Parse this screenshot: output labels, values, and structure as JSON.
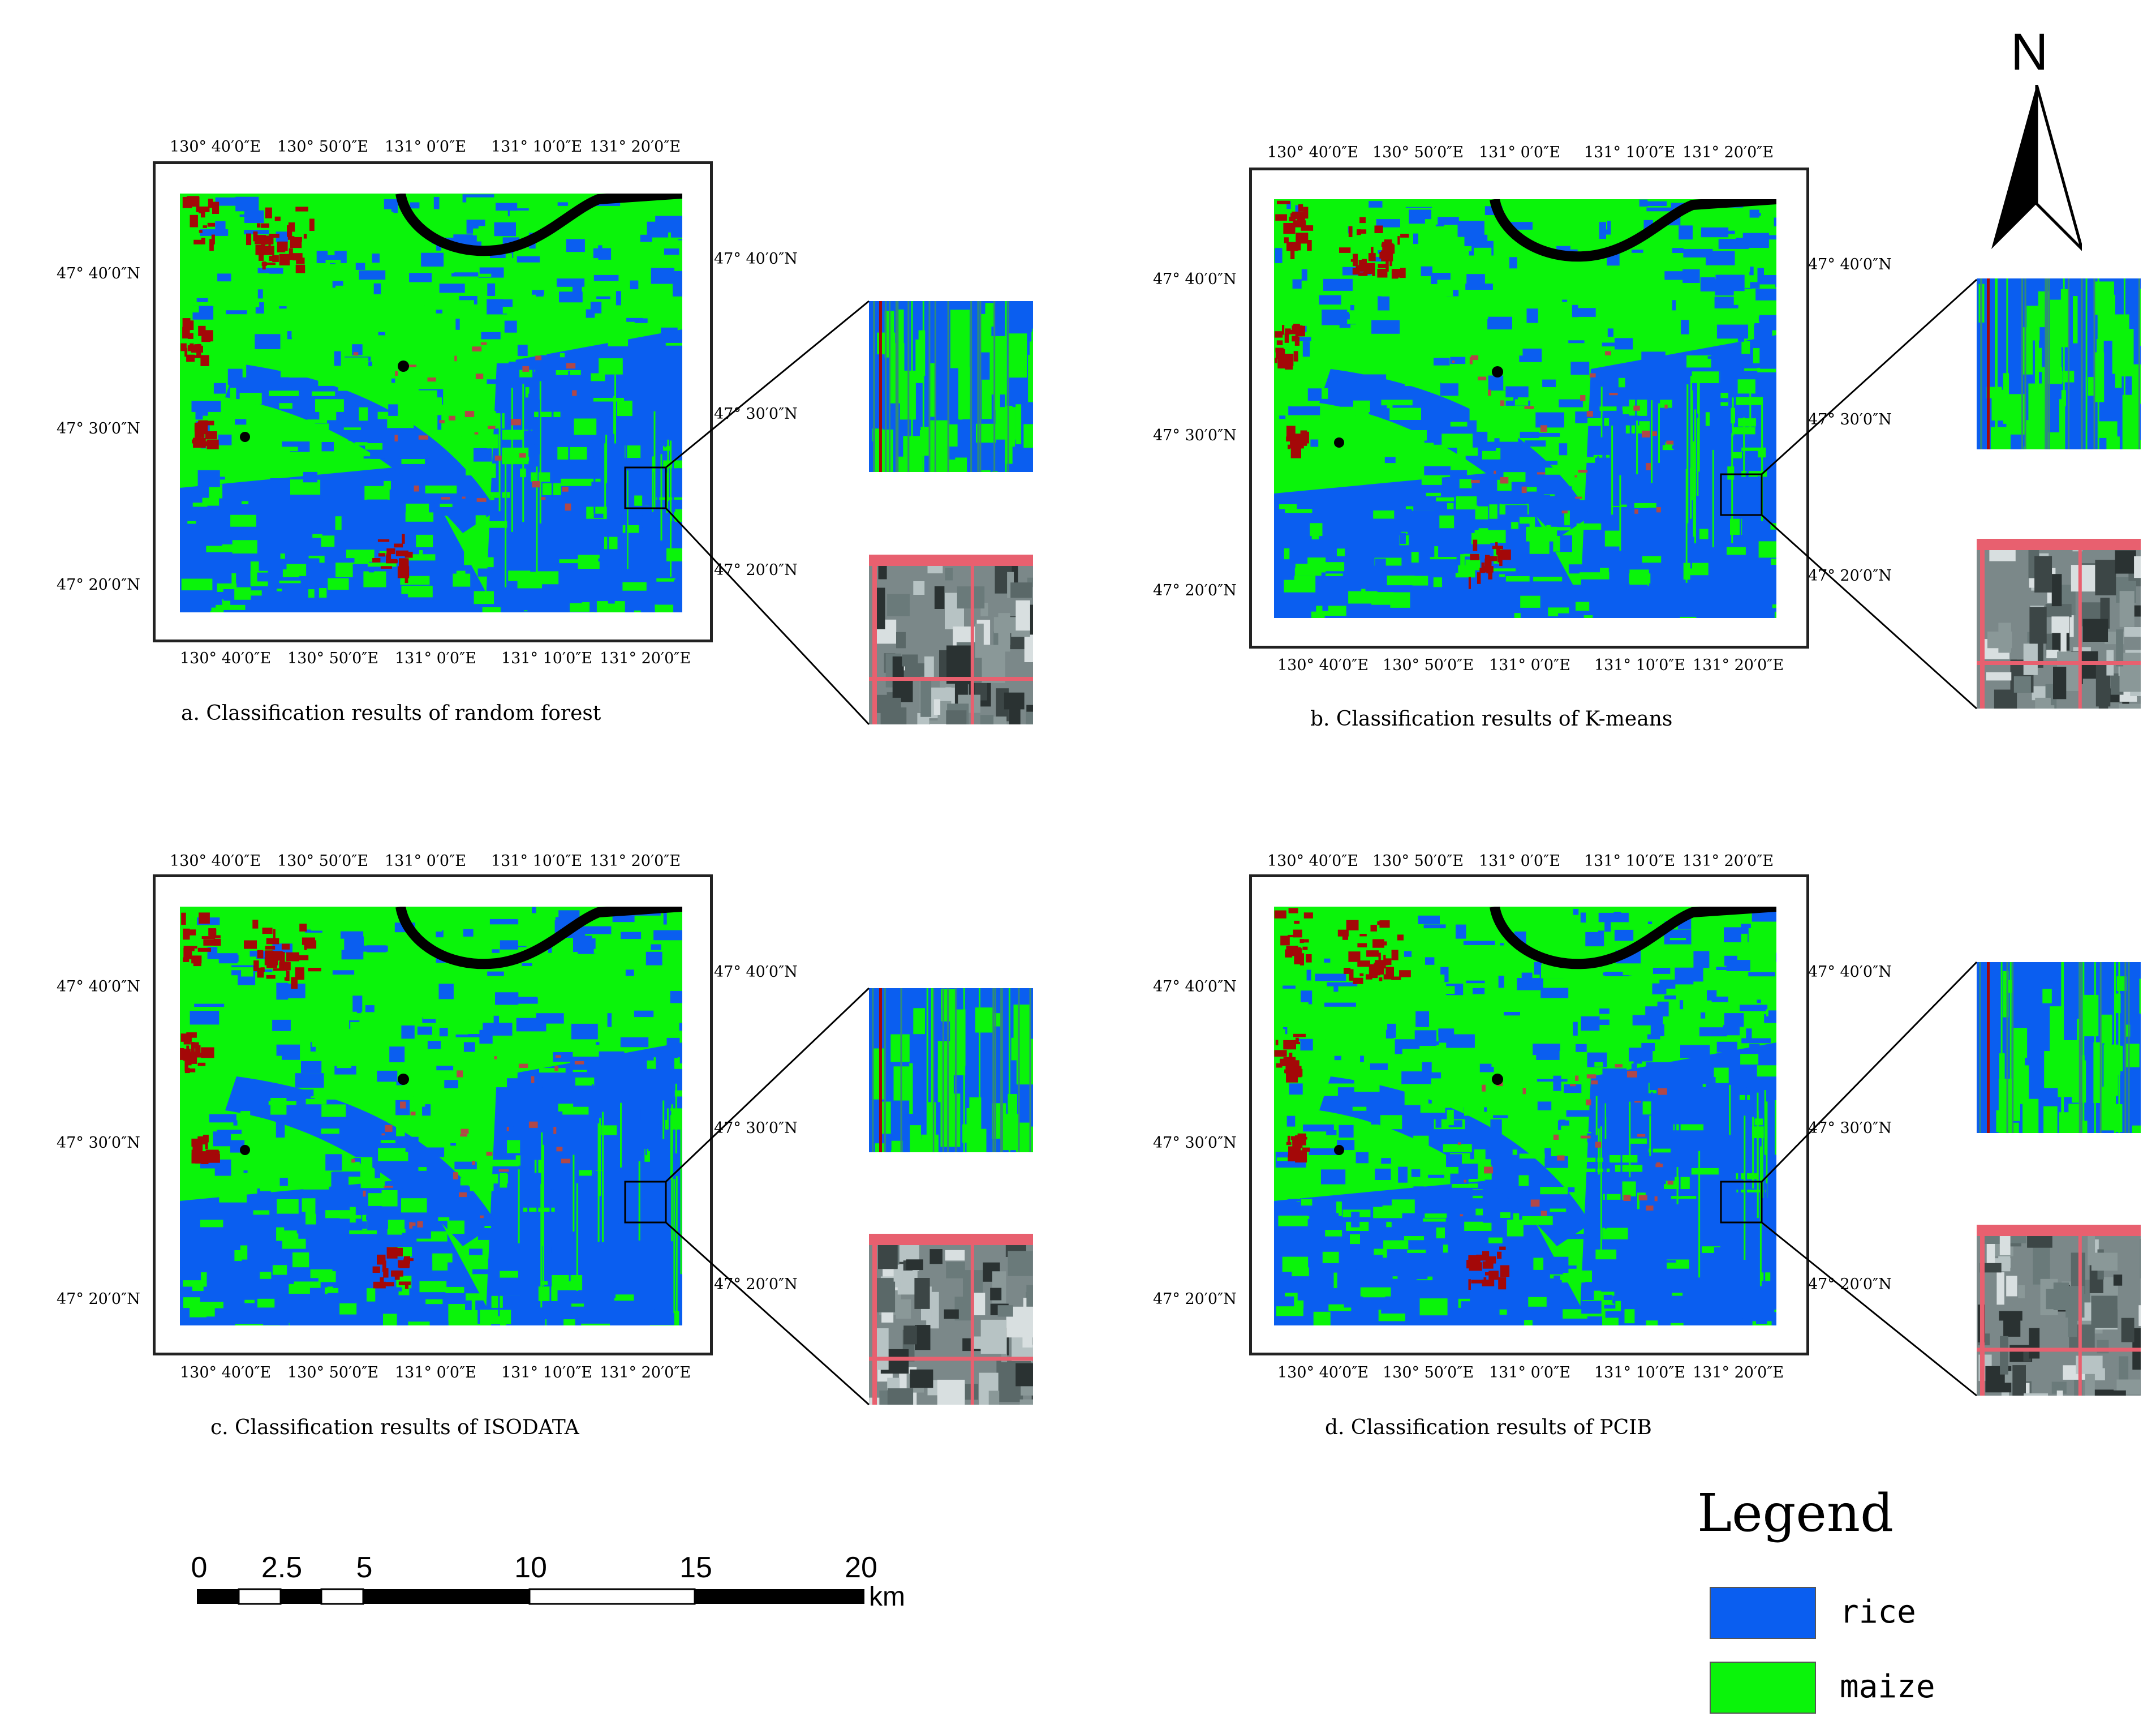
{
  "colors": {
    "rice": "#0a5ef0",
    "maize": "#0af40a",
    "other": "#a40808",
    "river": "#000000"
  },
  "panels": [
    {
      "caption": "a.  Classification results of random forest",
      "lon_ticks_top": [
        "130°  40′0″E",
        "130°  50′0″E",
        "131°  0′0″E",
        "131°  10′0″E",
        "131°  20′0″E"
      ],
      "lon_ticks_bottom": [
        "130°  40′0″E",
        "130°  50′0″E",
        "131°  0′0″E",
        "131°  10′0″E",
        "131°  20′0″E"
      ],
      "lat_ticks_left": [
        "47°  40′0″N",
        "47°  30′0″N",
        "47°  20′0″N"
      ],
      "lat_ticks_right": [
        "47°  40′0″N",
        "47°  30′0″N",
        "47°  20′0″N"
      ]
    },
    {
      "caption": "b.  Classification results of K-means",
      "lon_ticks_top": [
        "130°  40′0″E",
        "130°  50′0″E",
        "131°  0′0″E",
        "131°  10′0″E",
        "131°  20′0″E"
      ],
      "lon_ticks_bottom": [
        "130°  40′0″E",
        "130°  50′0″E",
        "131°  0′0″E",
        "131°  10′0″E",
        "131°  20′0″E"
      ],
      "lat_ticks_left": [
        "47°  40′0″N",
        "47°  30′0″N",
        "47°  20′0″N"
      ],
      "lat_ticks_right": [
        "47°  40′0″N",
        "47°  30′0″N",
        "47°  20′0″N"
      ]
    },
    {
      "caption": "c.  Classification results of ISODATA",
      "lon_ticks_top": [
        "130°  40′0″E",
        "130°  50′0″E",
        "131°  0′0″E",
        "131°  10′0″E",
        "131°  20′0″E"
      ],
      "lon_ticks_bottom": [
        "130°  40′0″E",
        "130°  50′0″E",
        "131°  0′0″E",
        "131°  10′0″E",
        "131°  20′0″E"
      ],
      "lat_ticks_left": [
        "47°  40′0″N",
        "47°  30′0″N",
        "47°  20′0″N"
      ],
      "lat_ticks_right": [
        "47°  40′0″N",
        "47°  30′0″N",
        "47°  20′0″N"
      ]
    },
    {
      "caption": "d.  Classification results of PCIB",
      "lon_ticks_top": [
        "130°  40′0″E",
        "130°  50′0″E",
        "131°  0′0″E",
        "131°  10′0″E",
        "131°  20′0″E"
      ],
      "lon_ticks_bottom": [
        "130°  40′0″E",
        "130°  50′0″E",
        "131°  0′0″E",
        "131°  10′0″E",
        "131°  20′0″E"
      ],
      "lat_ticks_left": [
        "47°  40′0″N",
        "47°  30′0″N",
        "47°  20′0″N"
      ],
      "lat_ticks_right": [
        "47°  40′0″N",
        "47°  30′0″N",
        "47°  20′0″N"
      ]
    }
  ],
  "north_arrow": {
    "label": "N"
  },
  "legend": {
    "title": "Legend",
    "items": [
      {
        "label": "rice",
        "color": "#0a5ef0"
      },
      {
        "label": "maize",
        "color": "#0af40a"
      }
    ]
  },
  "scale_bar": {
    "labels": [
      "0",
      "2.5",
      "5",
      "10",
      "15",
      "20"
    ],
    "unit": "km"
  }
}
